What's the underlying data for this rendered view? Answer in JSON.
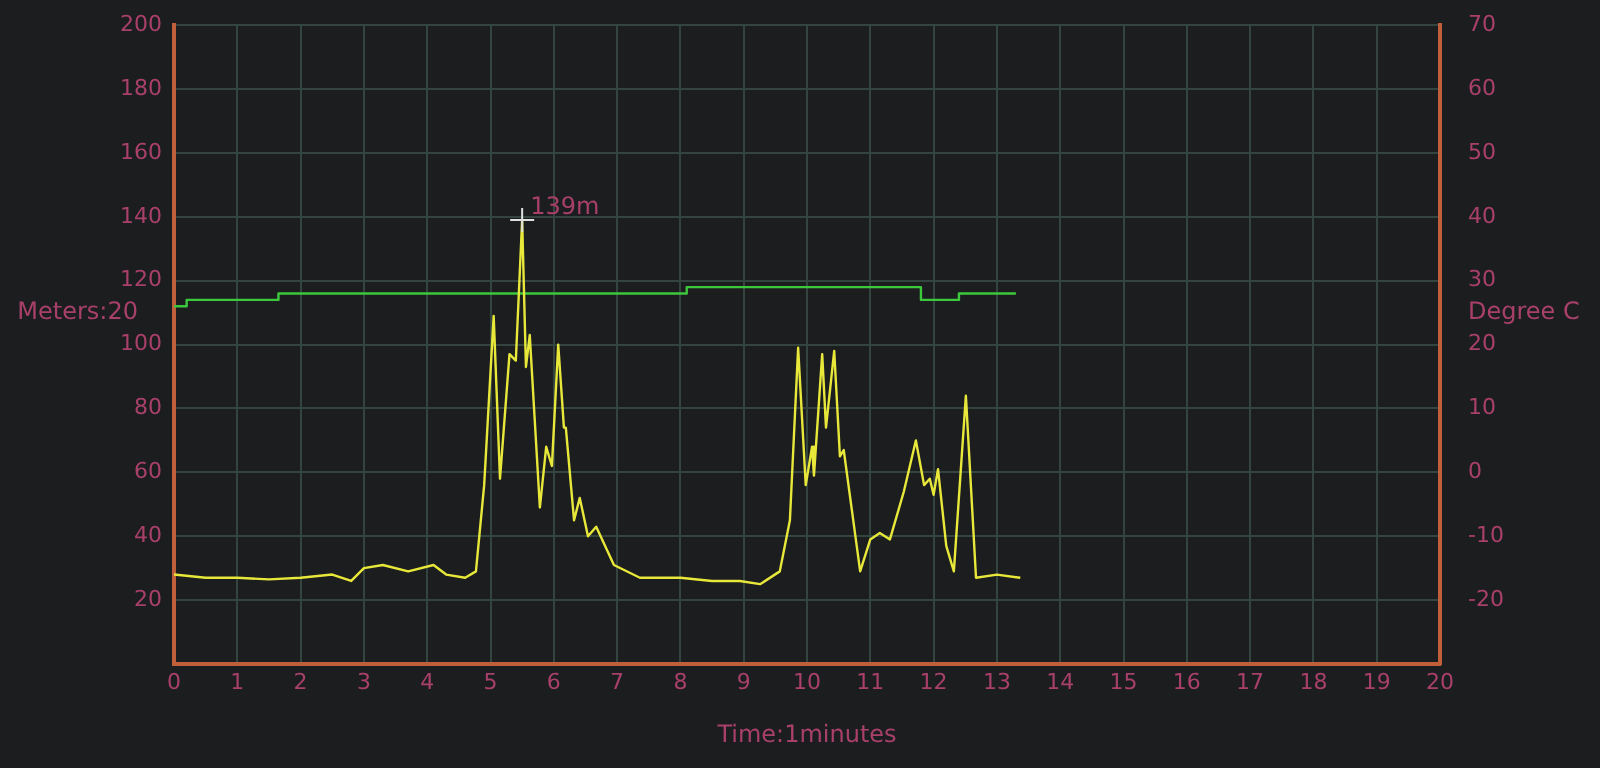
{
  "chart_data": {
    "type": "line",
    "xlabel": "Time:1minutes",
    "ylabel": "Meters:20",
    "y2label": "Degree C",
    "series": [
      {
        "color": "#e8e83a",
        "x": [
          0,
          0.5,
          1,
          1.5,
          2,
          2.5,
          2.8,
          3,
          3.3,
          3.7,
          4.1,
          4.3,
          4.6,
          4.77,
          4.9,
          5.05,
          5.15,
          5.3,
          5.4,
          5.5,
          5.56,
          5.62,
          5.78,
          5.88,
          5.97,
          6.07,
          6.16,
          6.19,
          6.32,
          6.41,
          6.54,
          6.67,
          6.95,
          7.36,
          8,
          8.5,
          8.94,
          9.26,
          9.57,
          9.73,
          9.86,
          9.98,
          10.08,
          10.11,
          10.24,
          10.3,
          10.43,
          10.52,
          10.58,
          10.84,
          11,
          11.15,
          11.31,
          11.53,
          11.72,
          11.85,
          11.94,
          12,
          12.07,
          12.2,
          12.32,
          12.51,
          12.67,
          13,
          13.37
        ],
        "values": [
          28,
          27,
          27,
          26.5,
          27,
          28,
          26,
          30,
          31,
          29,
          31,
          28,
          27,
          29,
          56,
          109,
          58,
          97,
          95,
          139,
          93,
          103,
          49,
          68,
          62,
          100,
          74,
          74,
          45,
          52,
          40,
          43,
          31,
          27,
          27,
          26,
          26,
          25,
          29,
          45,
          99,
          56,
          68,
          59,
          97,
          74,
          98,
          65,
          67,
          29,
          39,
          41,
          39,
          54,
          70,
          56,
          58,
          53,
          61,
          37,
          29,
          84,
          27,
          28,
          27
        ]
      },
      {
        "type": "step",
        "axis": "y2",
        "color": "#3cc83c",
        "x": [
          0,
          0.2,
          1.65,
          8.1,
          11.3,
          11.8,
          12.4,
          13.3
        ],
        "values": [
          26,
          27,
          28,
          29,
          29,
          27,
          28,
          28
        ]
      }
    ],
    "xlim": [
      0,
      20
    ],
    "xticks": [
      0,
      1,
      2,
      3,
      4,
      5,
      6,
      7,
      8,
      9,
      10,
      11,
      12,
      13,
      14,
      15,
      16,
      17,
      18,
      19,
      20
    ],
    "ylim": [
      0,
      200
    ],
    "yticks": [
      20,
      40,
      60,
      80,
      100,
      120,
      140,
      160,
      180,
      200
    ],
    "y2lim": [
      -30,
      70
    ],
    "y2ticks": [
      -20,
      -10,
      0,
      10,
      20,
      30,
      40,
      50,
      60,
      70
    ],
    "annotations": [
      {
        "text": "139m",
        "x": 5.5,
        "y": 139
      }
    ],
    "grid": true,
    "legend": false,
    "marker": "none",
    "line_style": "solid"
  }
}
